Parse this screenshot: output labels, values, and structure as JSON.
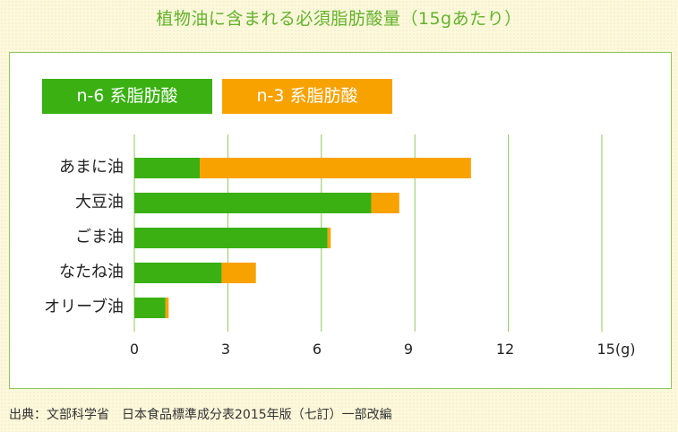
{
  "title": "植物油に含まれる必須脂肪酸量（15gあたり）",
  "source": "出典：文部科学省　日本食品標準成分表2015年版（七訂）一部改編",
  "colors": {
    "n6": "#3ab012",
    "n3": "#f8a200",
    "grid": "#8fc75a"
  },
  "chart_data": {
    "type": "bar",
    "orientation": "horizontal",
    "stacked": true,
    "categories": [
      "あまに油",
      "大豆油",
      "ごま油",
      "なたね油",
      "オリーブ油"
    ],
    "series": [
      {
        "name": "n-6 系脂肪酸",
        "values": [
          2.1,
          7.6,
          6.2,
          2.8,
          1.0
        ]
      },
      {
        "name": "n-3 系脂肪酸",
        "values": [
          8.7,
          0.9,
          0.1,
          1.1,
          0.1
        ]
      }
    ],
    "xlim": [
      0,
      15
    ],
    "xticks": [
      "0",
      "3",
      "6",
      "9",
      "12",
      "15(g)"
    ],
    "grid": true,
    "legend": "top-left"
  }
}
